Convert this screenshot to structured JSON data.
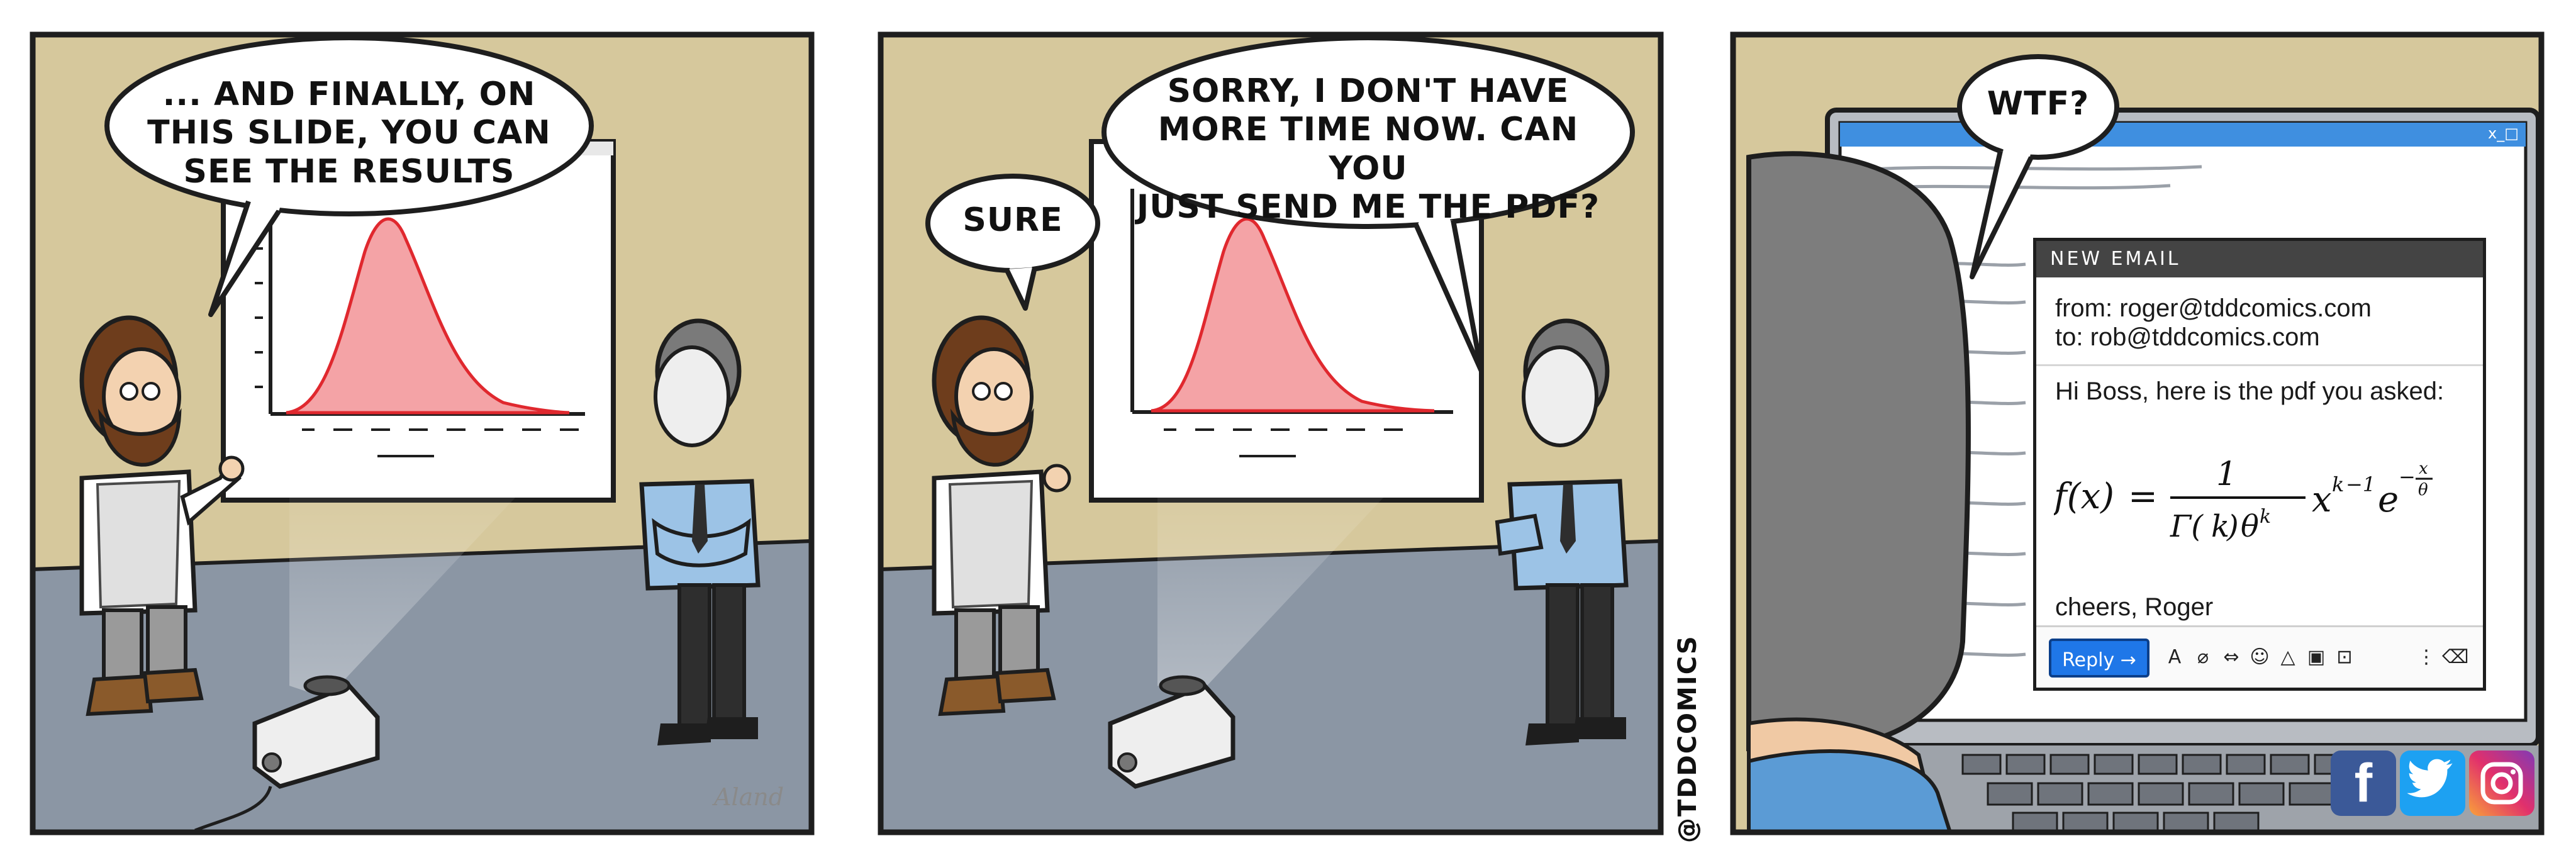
{
  "panel1": {
    "speech": [
      "... AND FINALLY, ON",
      "THIS SLIDE, YOU CAN",
      "SEE THE RESULTS"
    ],
    "signature": "Aland"
  },
  "panel2": {
    "speech_left": "SURE",
    "speech_right": [
      "SORRY, I DON'T HAVE",
      "MORE TIME NOW. CAN YOU",
      "JUST SEND ME THE PDF?"
    ]
  },
  "panel3": {
    "speech": "WTF?",
    "window_controls": "x_□",
    "email": {
      "header": "NEW EMAIL",
      "from": "from: roger@tddcomics.com",
      "to": "to: rob@tddcomics.com",
      "greeting": "Hi Boss, here is the pdf you asked:",
      "signoff": "cheers, Roger",
      "reply_label": "Reply →"
    }
  },
  "watermark": "@TDDCOMICS",
  "social": {
    "facebook": "f",
    "twitter": "twitter-bird",
    "instagram": "instagram-camera"
  },
  "colors": {
    "wall": "#d6c89c",
    "floor": "#8b96a4",
    "curve_fill": "#f4a3a6",
    "curve_line": "#e0282e",
    "shirt_blue": "#9cc3e6",
    "reply_blue": "#1f77e8",
    "facebook": "#3b5998",
    "twitter": "#1da1f2"
  }
}
